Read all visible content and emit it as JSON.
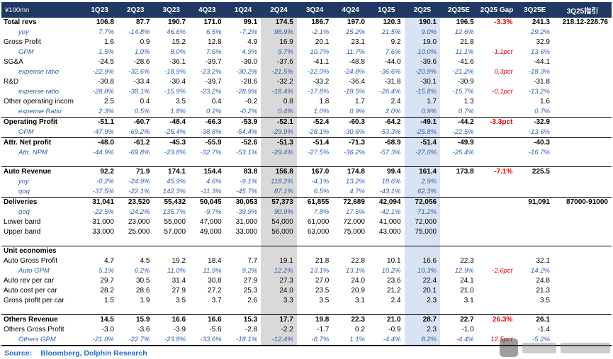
{
  "chart_data": {
    "type": "table",
    "unit_label": "¥100mn",
    "columns": [
      "1Q23",
      "2Q23",
      "3Q23",
      "4Q23",
      "1Q24",
      "2Q24",
      "3Q24",
      "4Q24",
      "1Q25",
      "2Q25",
      "2Q25E",
      "2Q25 Gap",
      "3Q25E",
      "3Q25指引"
    ],
    "highlight": {
      "gray_column": "2Q24",
      "blue_column": "2Q25",
      "gap_column": "2Q25 Gap",
      "gray_color": "#D9D9D9",
      "blue_color": "#DAE3F3",
      "gap_text_color": "#EE0000",
      "header_bg": "#1F3864",
      "sub_text_color": "#2E5FA8"
    },
    "rows": [
      {
        "label": "Total revs",
        "type": "bold",
        "values": [
          "106.8",
          "87.7",
          "190.7",
          "171.0",
          "99.1",
          "174.5",
          "186.7",
          "197.0",
          "120.3",
          "190.1",
          "196.5",
          "-3.3%",
          "241.3",
          "218.12-228.76"
        ]
      },
      {
        "label": "yoy",
        "type": "sub",
        "values": [
          "7.7%",
          "-14.8%",
          "46.6%",
          "6.5%",
          "-7.2%",
          "98.9%",
          "-2.1%",
          "15.2%",
          "21.5%",
          "9.0%",
          "12.6%",
          "",
          "29.2%",
          ""
        ]
      },
      {
        "label": "Gross Profit",
        "type": "main",
        "values": [
          "1.6",
          "0.9",
          "15.2",
          "12.8",
          "4.9",
          "16.9",
          "20.1",
          "23.1",
          "9.2",
          "19.0",
          "21.8",
          "",
          "32.9",
          ""
        ]
      },
      {
        "label": "GPM",
        "type": "sub",
        "values": [
          "1.5%",
          "1.0%",
          "8.0%",
          "7.5%",
          "4.9%",
          "9.7%",
          "10.7%",
          "11.7%",
          "7.6%",
          "10.0%",
          "11.1%",
          "-1.1pct",
          "13.6%",
          ""
        ]
      },
      {
        "label": "SG&A",
        "type": "main",
        "values": [
          "-24.5",
          "-28.6",
          "-36.1",
          "-39.7",
          "-30.0",
          "-37.6",
          "-41.1",
          "-48.8",
          "-44.0",
          "-39.6",
          "-41.6",
          "",
          "-44.1",
          ""
        ]
      },
      {
        "label": "expense ratio",
        "type": "sub",
        "values": [
          "-22.9%",
          "-32.6%",
          "-18.9%",
          "-23.2%",
          "-30.2%",
          "-21.5%",
          "-22.0%",
          "-24.8%",
          "-36.6%",
          "-20.9%",
          "-21.2%",
          "0.3pct",
          "-18.3%",
          ""
        ]
      },
      {
        "label": "R&D",
        "type": "main",
        "values": [
          "-30.8",
          "-33.4",
          "-30.4",
          "-39.7",
          "-28.6",
          "-32.2",
          "-33.2",
          "-36.4",
          "-31.8",
          "-30.1",
          "-30.9",
          "",
          "-31.8",
          ""
        ]
      },
      {
        "label": "expense ratio",
        "type": "sub",
        "values": [
          "-28.8%",
          "-38.1%",
          "-15.9%",
          "-23.2%",
          "-28.9%",
          "-18.4%",
          "-17.8%",
          "-18.5%",
          "-26.4%",
          "-15.8%",
          "-15.7%",
          "-0.1pct",
          "-13.2%",
          ""
        ]
      },
      {
        "label": "Other operating incom",
        "type": "main",
        "values": [
          "2.5",
          "0.4",
          "3.5",
          "0.4",
          "-0.2",
          "0.8",
          "1.8",
          "1.7",
          "2.4",
          "1.7",
          "1.3",
          "",
          "1.6",
          ""
        ]
      },
      {
        "label": "expense Ratio",
        "type": "sub",
        "values": [
          "2.3%",
          "0.5%",
          "1.8%",
          "0.2%",
          "-0.2%",
          "0.4%",
          "1.0%",
          "0.9%",
          "2.0%",
          "0.9%",
          "0.7%",
          "",
          "0.7%",
          ""
        ]
      },
      {
        "label": "Operating Profit",
        "type": "bold",
        "border_top": true,
        "values": [
          "-51.1",
          "-60.7",
          "-48.4",
          "-66.3",
          "-53.9",
          "-52.1",
          "-52.4",
          "-60.3",
          "-64.2",
          "-49.1",
          "-44.2",
          "-3.3pct",
          "-32.9",
          ""
        ]
      },
      {
        "label": "OPM",
        "type": "sub",
        "values": [
          "-47.9%",
          "-69.2%",
          "-25.4%",
          "-38.8%",
          "-54.4%",
          "-29.9%",
          "-28.1%",
          "-30.6%",
          "-53.3%",
          "-25.8%",
          "-22.5%",
          "",
          "-13.6%",
          ""
        ]
      },
      {
        "label": "Attr. Net profit",
        "type": "bold",
        "border_top": true,
        "values": [
          "-48.0",
          "-61.2",
          "-45.3",
          "-55.9",
          "-52.6",
          "-51.3",
          "-51.4",
          "-71.3",
          "-68.9",
          "-51.4",
          "-49.9",
          "",
          "-40.3",
          ""
        ]
      },
      {
        "label": "Attr. NPM",
        "type": "sub",
        "values": [
          "-44.9%",
          "-69.8%",
          "-23.8%",
          "-32.7%",
          "-53.1%",
          "-29.4%",
          "-27.5%",
          "-36.2%",
          "-57.3%",
          "-27.0%",
          "-25.4%",
          "",
          "-16.7%",
          ""
        ]
      },
      {
        "label": "",
        "type": "blank",
        "values": []
      },
      {
        "label": "Auto Revenue",
        "type": "bold",
        "border_top": true,
        "values": [
          "92.2",
          "71.9",
          "174.1",
          "154.4",
          "83.8",
          "156.8",
          "167.0",
          "174.8",
          "99.4",
          "161.4",
          "173.8",
          "-7.1%",
          "225.5",
          ""
        ]
      },
      {
        "label": "yoy",
        "type": "sub",
        "values": [
          "-0.2%",
          "-24.9%",
          "45.9%",
          "4.6%",
          "-9.1%",
          "118.2%",
          "-4.1%",
          "13.2%",
          "18.6%",
          "2.9%",
          "",
          "",
          "",
          ""
        ]
      },
      {
        "label": "qoq",
        "type": "sub",
        "values": [
          "-37.5%",
          "-22.1%",
          "142.3%",
          "-11.3%",
          "-45.7%",
          "87.1%",
          "6.5%",
          "4.7%",
          "-43.1%",
          "62.3%",
          "",
          "",
          "",
          ""
        ]
      },
      {
        "label": "Deliveries",
        "type": "bold",
        "border_top": true,
        "values": [
          "31,041",
          "23,520",
          "55,432",
          "50,045",
          "30,053",
          "57,373",
          "61,855",
          "72,689",
          "42,094",
          "72,056",
          "",
          "",
          "91,091",
          "87000-91000"
        ]
      },
      {
        "label": "qoq",
        "type": "sub",
        "values": [
          "-22.5%",
          "-24.2%",
          "135.7%",
          "-9.7%",
          "-39.9%",
          "90.9%",
          "7.8%",
          "17.5%",
          "-42.1%",
          "71.2%",
          "",
          "",
          "",
          ""
        ]
      },
      {
        "label": "Lower band",
        "type": "main",
        "values": [
          "31,000",
          "23,000",
          "55,000",
          "47,000",
          "31,000",
          "54,000",
          "61,000",
          "72,000",
          "41,000",
          "72,000",
          "",
          "",
          "",
          ""
        ]
      },
      {
        "label": "Upper band",
        "type": "main",
        "values": [
          "33,000",
          "25,000",
          "57,000",
          "49,000",
          "33,000",
          "56,000",
          "63,000",
          "75,000",
          "43,000",
          "75,000",
          "",
          "",
          "",
          ""
        ]
      },
      {
        "label": "",
        "type": "blank",
        "values": []
      },
      {
        "label": "Unit economies",
        "type": "bold",
        "border_top": true,
        "values": [
          "",
          "",
          "",
          "",
          "",
          "",
          "",
          "",
          "",
          "",
          "",
          "",
          "",
          ""
        ]
      },
      {
        "label": "Auto Gross Profit",
        "type": "main",
        "values": [
          "4.7",
          "4.5",
          "19.2",
          "18.4",
          "7.7",
          "19.1",
          "21.8",
          "22.8",
          "10.1",
          "16.6",
          "22.3",
          "",
          "32.1",
          ""
        ]
      },
      {
        "label": "Auto GPM",
        "type": "sub",
        "values": [
          "5.1%",
          "6.2%",
          "11.0%",
          "11.9%",
          "9.2%",
          "12.2%",
          "13.1%",
          "13.1%",
          "10.2%",
          "10.3%",
          "12.9%",
          "-2.6pct",
          "14.2%",
          ""
        ]
      },
      {
        "label": "Auto rev per car",
        "type": "main",
        "values": [
          "29.7",
          "30.5",
          "31.4",
          "30.8",
          "27.9",
          "27.3",
          "27.0",
          "24.0",
          "23.6",
          "22.4",
          "24.1",
          "",
          "24.8",
          ""
        ]
      },
      {
        "label": "Auto cost per car",
        "type": "main",
        "values": [
          "28.2",
          "28.6",
          "27.9",
          "27.2",
          "25.3",
          "24.0",
          "23.5",
          "20.9",
          "21.2",
          "20.1",
          "21.0",
          "",
          "21.3",
          ""
        ]
      },
      {
        "label": "Gross profit per car",
        "type": "main",
        "values": [
          "1.5",
          "1.9",
          "3.5",
          "3.7",
          "2.6",
          "3.3",
          "3.5",
          "3.1",
          "2.4",
          "2.3",
          "3.1",
          "",
          "3.5",
          ""
        ]
      },
      {
        "label": "",
        "type": "blank",
        "values": []
      },
      {
        "label": "Others Revenue",
        "type": "bold",
        "border_top": true,
        "values": [
          "14.5",
          "15.9",
          "16.6",
          "16.6",
          "15.3",
          "17.7",
          "19.8",
          "22.3",
          "21.0",
          "28.7",
          "22.7",
          "26.3%",
          "26.1",
          ""
        ]
      },
      {
        "label": "Others Gross Profit",
        "type": "main",
        "values": [
          "-3.0",
          "-3.6",
          "-3.9",
          "-5.6",
          "-2.8",
          "-2.2",
          "-1.7",
          "0.2",
          "-0.9",
          "2.3",
          "-1.0",
          "",
          "-1.4",
          ""
        ]
      },
      {
        "label": "Others GPM",
        "type": "sub",
        "border_bottom": true,
        "values": [
          "-21.0%",
          "-22.7%",
          "-23.8%",
          "-33.6%",
          "-18.1%",
          "-12.4%",
          "-8.7%",
          "1.1%",
          "-4.4%",
          "8.2%",
          "-4.4%",
          "12.5pct",
          "-5.2%",
          ""
        ]
      }
    ]
  },
  "source": {
    "prefix": "Source:",
    "text": "Bloomberg,  Dolphin Research"
  }
}
